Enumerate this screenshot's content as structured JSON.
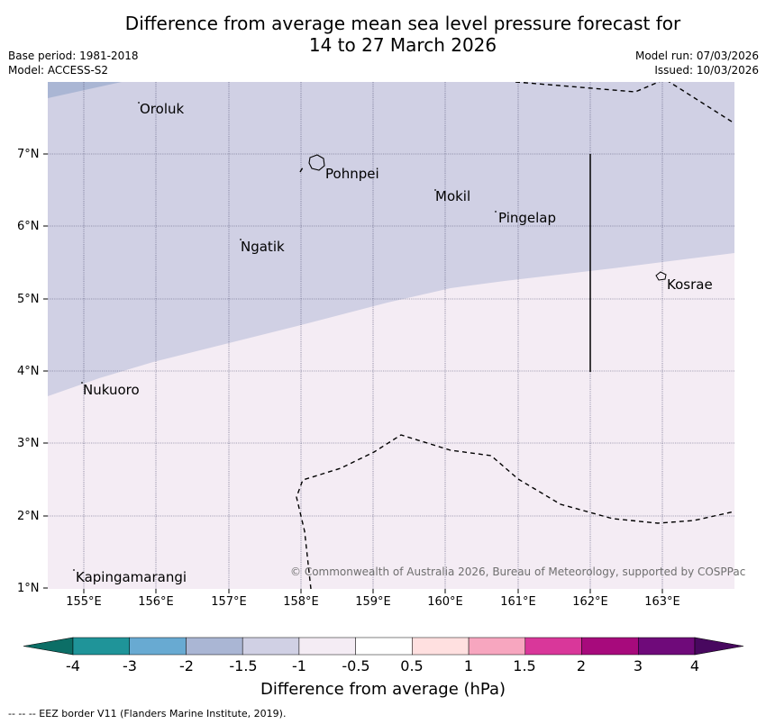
{
  "title_line1": "Difference from average mean sea level pressure forecast for",
  "title_line2": "14 to 27 March 2026",
  "meta": {
    "base_period": "Base period: 1981-2018",
    "model": "Model: ACCESS-S2",
    "model_run": "Model run: 07/03/2026",
    "issued": "Issued: 10/03/2026"
  },
  "map": {
    "lat_labels": [
      "7°N",
      "6°N",
      "5°N",
      "4°N",
      "3°N",
      "2°N",
      "1°N"
    ],
    "lon_labels": [
      "155°E",
      "156°E",
      "157°E",
      "158°E",
      "159°E",
      "160°E",
      "161°E",
      "162°E",
      "163°E"
    ],
    "places": [
      "Oroluk",
      "Pohnpei",
      "Mokil",
      "Pingelap",
      "Ngatik",
      "Kosrae",
      "Nukuoro",
      "Kapingamarangi"
    ],
    "copyright": "© Commonwealth of Australia 2026, Bureau of Meteorology, supported by COSPPac"
  },
  "colorbar": {
    "ticks": [
      "-4",
      "-3",
      "-2",
      "-1.5",
      "-1",
      "-0.5",
      "0.5",
      "1",
      "1.5",
      "2",
      "3",
      "4"
    ],
    "colors": [
      "#0c6e66",
      "#1f9499",
      "#68aad2",
      "#aab6d4",
      "#d0d0e4",
      "#f4ecf4",
      "#ffffff",
      "#ffe0e0",
      "#f7a6bf",
      "#d9379a",
      "#a70a7c",
      "#6f0a7a",
      "#48085f"
    ],
    "label": "Difference from average (hPa)"
  },
  "footnote": "--  --  -- EEZ border V11 (Flanders Marine Institute, 2019)."
}
